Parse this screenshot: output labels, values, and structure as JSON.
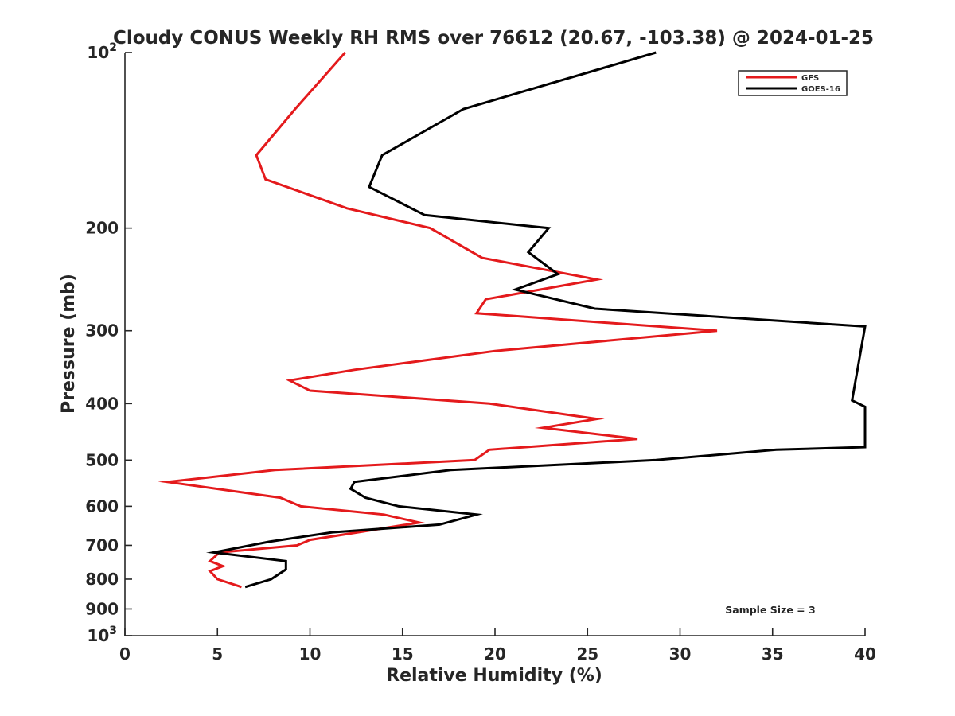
{
  "chart_data": {
    "type": "line",
    "title": "Cloudy CONUS Weekly RH RMS over 76612 (20.67, -103.38) @ 2024-01-25",
    "xlabel": "Relative Humidity (%)",
    "ylabel": "Pressure (mb)",
    "xlim": [
      0,
      40
    ],
    "ylim": [
      100,
      1000
    ],
    "yscale": "log",
    "y_reversed": true,
    "grid": false,
    "legend_position": "top-right",
    "xticks": [
      0,
      5,
      10,
      15,
      20,
      25,
      30,
      35,
      40
    ],
    "xtick_labels": [
      "0",
      "5",
      "10",
      "15",
      "20",
      "25",
      "30",
      "35",
      "40"
    ],
    "yticks": [
      100,
      200,
      300,
      400,
      500,
      600,
      700,
      800,
      900,
      1000
    ],
    "ytick_labels": [
      {
        "base": "10",
        "exp": "2"
      },
      {
        "base": "200",
        "exp": ""
      },
      {
        "base": "300",
        "exp": ""
      },
      {
        "base": "400",
        "exp": ""
      },
      {
        "base": "500",
        "exp": ""
      },
      {
        "base": "600",
        "exp": ""
      },
      {
        "base": "700",
        "exp": ""
      },
      {
        "base": "800",
        "exp": ""
      },
      {
        "base": "900",
        "exp": ""
      },
      {
        "base": "10",
        "exp": "3"
      }
    ],
    "annotation": "Sample Size = 3",
    "series": [
      {
        "name": "GFS",
        "color": "#e41a1c",
        "points": [
          [
            11.9,
            100
          ],
          [
            9.2,
            125
          ],
          [
            7.1,
            150
          ],
          [
            7.6,
            165
          ],
          [
            12.0,
            185
          ],
          [
            16.5,
            200
          ],
          [
            19.3,
            225
          ],
          [
            25.5,
            245
          ],
          [
            19.5,
            265
          ],
          [
            19.0,
            280
          ],
          [
            32.0,
            300
          ],
          [
            20.0,
            325
          ],
          [
            12.4,
            350
          ],
          [
            8.9,
            365
          ],
          [
            10.0,
            380
          ],
          [
            19.7,
            400
          ],
          [
            25.5,
            425
          ],
          [
            22.6,
            440
          ],
          [
            27.7,
            460
          ],
          [
            19.7,
            480
          ],
          [
            18.9,
            500
          ],
          [
            8.1,
            520
          ],
          [
            2.3,
            545
          ],
          [
            8.4,
            580
          ],
          [
            9.5,
            600
          ],
          [
            14.0,
            620
          ],
          [
            15.9,
            640
          ],
          [
            10.0,
            685
          ],
          [
            9.3,
            700
          ],
          [
            5.1,
            720
          ],
          [
            4.6,
            745
          ],
          [
            5.3,
            760
          ],
          [
            4.6,
            775
          ],
          [
            5.0,
            800
          ],
          [
            6.3,
            825
          ]
        ]
      },
      {
        "name": "GOES-16",
        "color": "#000000",
        "points": [
          [
            28.7,
            100
          ],
          [
            18.3,
            125
          ],
          [
            13.9,
            150
          ],
          [
            13.2,
            170
          ],
          [
            16.2,
            190
          ],
          [
            22.9,
            200
          ],
          [
            21.8,
            220
          ],
          [
            23.4,
            240
          ],
          [
            21.1,
            255
          ],
          [
            25.4,
            275
          ],
          [
            40.0,
            295
          ],
          [
            39.3,
            395
          ],
          [
            40.0,
            405
          ],
          [
            40.0,
            475
          ],
          [
            35.2,
            480
          ],
          [
            28.7,
            500
          ],
          [
            17.6,
            520
          ],
          [
            12.4,
            545
          ],
          [
            12.2,
            560
          ],
          [
            13.0,
            580
          ],
          [
            14.8,
            600
          ],
          [
            19.0,
            620
          ],
          [
            17.0,
            645
          ],
          [
            11.2,
            665
          ],
          [
            7.8,
            690
          ],
          [
            4.8,
            720
          ],
          [
            8.7,
            745
          ],
          [
            8.7,
            770
          ],
          [
            7.9,
            800
          ],
          [
            6.5,
            825
          ]
        ]
      }
    ]
  }
}
